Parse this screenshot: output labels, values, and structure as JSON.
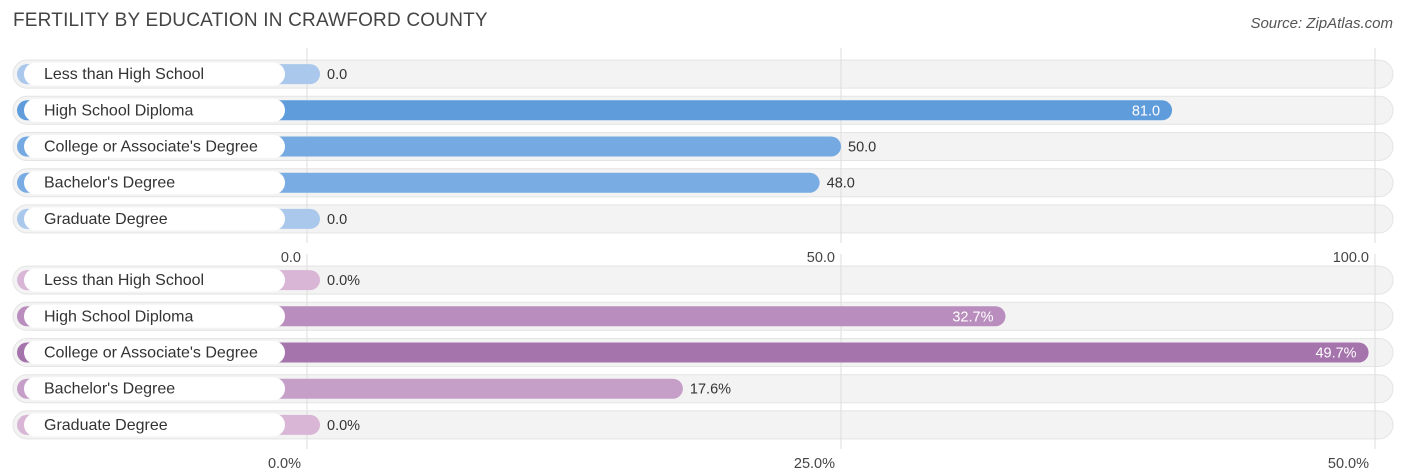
{
  "title": "FERTILITY BY EDUCATION IN CRAWFORD COUNTY",
  "source": "Source: ZipAtlas.com",
  "chart_data": [
    {
      "type": "bar",
      "orientation": "horizontal",
      "categories": [
        "Less than High School",
        "High School Diploma",
        "College or Associate's Degree",
        "Bachelor's Degree",
        "Graduate Degree"
      ],
      "values": [
        0.0,
        81.0,
        50.0,
        48.0,
        0.0
      ],
      "value_labels": [
        "0.0",
        "81.0",
        "50.0",
        "48.0",
        "0.0"
      ],
      "xlim": [
        0,
        100
      ],
      "ticks": [
        0,
        50,
        100
      ],
      "tick_labels": [
        "0.0",
        "50.0",
        "100.0"
      ],
      "grid": true,
      "colors": [
        "#aac8ec",
        "#5f9cdc",
        "#74a9e2",
        "#78ace3",
        "#aac8ec"
      ]
    },
    {
      "type": "bar",
      "orientation": "horizontal",
      "categories": [
        "Less than High School",
        "High School Diploma",
        "College or Associate's Degree",
        "Bachelor's Degree",
        "Graduate Degree"
      ],
      "values": [
        0.0,
        32.7,
        49.7,
        17.6,
        0.0
      ],
      "value_labels": [
        "0.0%",
        "32.7%",
        "49.7%",
        "17.6%",
        "0.0%"
      ],
      "xlim": [
        0,
        50
      ],
      "ticks": [
        0,
        25,
        50
      ],
      "tick_labels": [
        "0.0%",
        "25.0%",
        "50.0%"
      ],
      "grid": true,
      "colors": [
        "#d9b6d6",
        "#b98dbd",
        "#a674ad",
        "#c69fc9",
        "#d9b6d6"
      ]
    }
  ]
}
